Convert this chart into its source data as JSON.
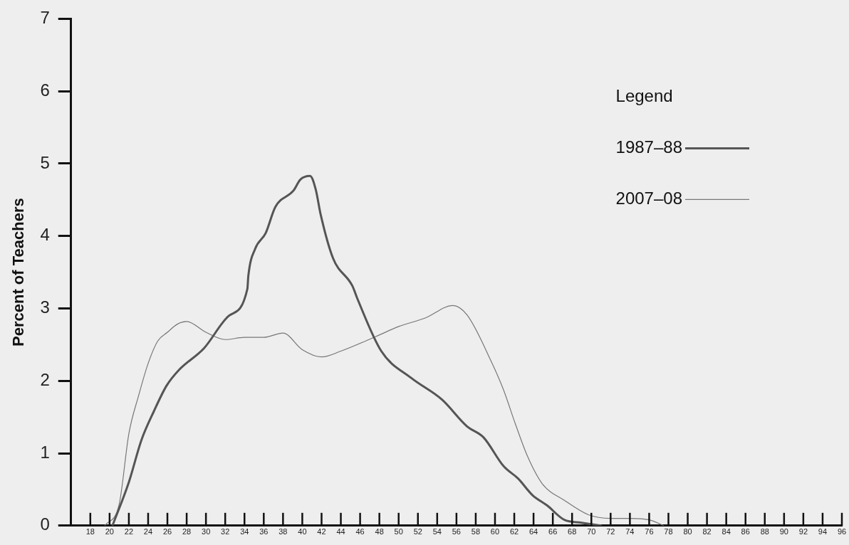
{
  "chart_data": {
    "type": "line",
    "ylabel": "Percent of Teachers",
    "legend_title": "Legend",
    "legend": "top right",
    "marker": "none",
    "line_style": "solid",
    "xlim": [
      16,
      96
    ],
    "xticks": [
      18,
      20,
      22,
      24,
      26,
      28,
      30,
      32,
      34,
      36,
      38,
      40,
      42,
      44,
      46,
      48,
      50,
      52,
      54,
      56,
      58,
      60,
      62,
      64,
      66,
      68,
      70,
      72,
      74,
      76,
      78,
      80,
      82,
      84,
      86,
      88,
      90,
      92,
      94,
      96
    ],
    "ylim": [
      0,
      7
    ],
    "yticks": [
      0,
      1,
      2,
      3,
      4,
      5,
      6,
      7
    ],
    "series": [
      {
        "name": "1987–88",
        "color": "#555555",
        "x": [
          20.3,
          22,
          23.3,
          24.6,
          25.9,
          27.2,
          29.8,
          32.4,
          34.3,
          34.4,
          35.1,
          36.2,
          37.2,
          39.1,
          39.8,
          40.8,
          41.4,
          41.9,
          43.2,
          45.2,
          45.7,
          48.2,
          51.3,
          54.5,
          57.1,
          58.8,
          60.9,
          62.4,
          63.9,
          65.4,
          67.2,
          69,
          71
        ],
        "values": [
          0,
          0.6,
          1.18,
          1.58,
          1.93,
          2.15,
          2.45,
          2.9,
          3.27,
          3.45,
          3.82,
          4.04,
          4.4,
          4.63,
          4.78,
          4.83,
          4.64,
          4.3,
          3.69,
          3.31,
          3.14,
          2.41,
          2.04,
          1.74,
          1.37,
          1.22,
          0.82,
          0.65,
          0.42,
          0.28,
          0.08,
          0.04,
          0
        ]
      },
      {
        "name": "2007–08",
        "color": "#777777",
        "x": [
          19.5,
          21,
          22,
          23,
          24,
          25,
          26,
          27,
          28,
          30,
          32,
          34,
          36,
          38,
          40,
          42,
          44,
          47.6,
          50,
          52.8,
          55.6,
          57.1,
          59.6,
          60.9,
          62.1,
          63.4,
          64.9,
          67.2,
          69.7,
          72,
          74,
          76,
          77.5
        ],
        "values": [
          0,
          0.3,
          1.27,
          1.79,
          2.24,
          2.55,
          2.67,
          2.78,
          2.82,
          2.67,
          2.57,
          2.6,
          2.6,
          2.66,
          2.43,
          2.33,
          2.41,
          2.61,
          2.75,
          2.87,
          3.04,
          2.91,
          2.27,
          1.87,
          1.41,
          0.95,
          0.58,
          0.35,
          0.15,
          0.1,
          0.1,
          0.08,
          0
        ]
      }
    ]
  }
}
